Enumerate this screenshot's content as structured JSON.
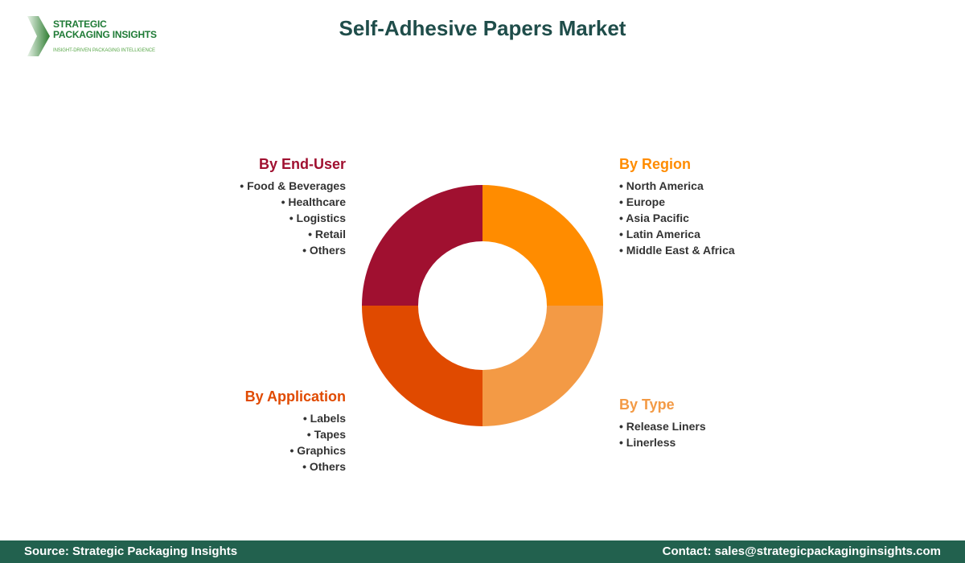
{
  "logo": {
    "line1": "STRATEGIC",
    "line2": "PACKAGING INSIGHTS",
    "tagline": "INSIGHT-DRIVEN PACKAGING INTELLIGENCE"
  },
  "title": "Self-Adhesive Papers Market",
  "chart_data": {
    "type": "pie",
    "variant": "donut",
    "categories": [
      "By Region",
      "By Type",
      "By Application",
      "By End-User"
    ],
    "values": [
      25,
      25,
      25,
      25
    ],
    "colors": [
      "#FF8C00",
      "#F39A45",
      "#E04A00",
      "#A01030"
    ]
  },
  "groups": {
    "region": {
      "title": "By Region",
      "color": "#FF8C00",
      "items": [
        "North America",
        "Europe",
        "Asia Pacific",
        "Latin America",
        "Middle East & Africa"
      ]
    },
    "type": {
      "title": "By Type",
      "color": "#F39A45",
      "items": [
        "Release Liners",
        "Linerless"
      ]
    },
    "application": {
      "title": "By Application",
      "color": "#E04A00",
      "items": [
        "Labels",
        "Tapes",
        "Graphics",
        "Others"
      ]
    },
    "enduser": {
      "title": "By End-User",
      "color": "#A01030",
      "items": [
        "Food & Beverages",
        "Healthcare",
        "Logistics",
        "Retail",
        "Others"
      ]
    }
  },
  "footer": {
    "source": "Source: Strategic Packaging Insights",
    "contact": "Contact: sales@strategicpackaginginsights.com"
  }
}
